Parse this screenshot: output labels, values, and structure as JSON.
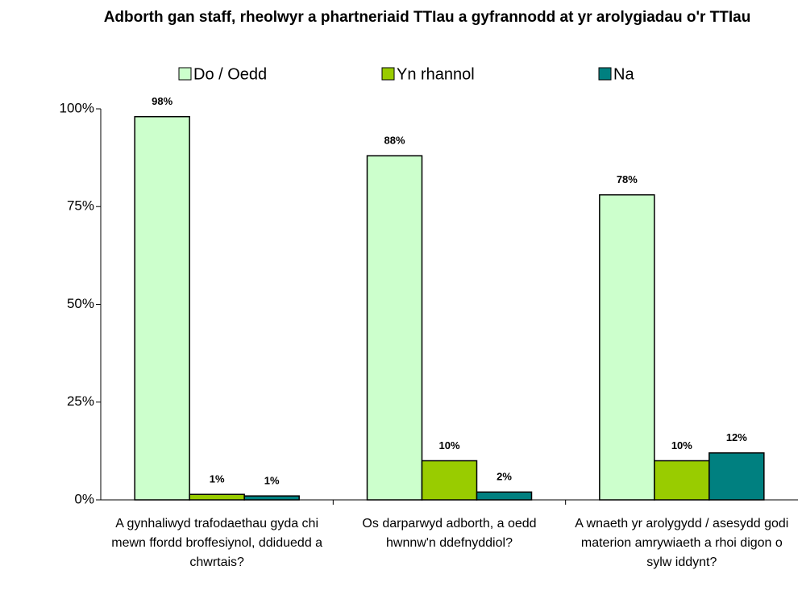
{
  "chart_data": {
    "type": "bar",
    "title": "Adborth gan staff, rheolwyr a phartneriaid TTIau a gyfrannodd at yr arolygiadau o'r TTIau",
    "categories": [
      "A gynhaliwyd trafodaethau gyda chi mewn ffordd broffesiynol, ddiduedd a chwrtais?",
      "Os darparwyd adborth, a oedd hwnnw'n ddefnyddiol?",
      "A wnaeth yr arolygydd / asesydd godi materion amrywiaeth a rhoi digon o sylw iddynt?"
    ],
    "series": [
      {
        "name": "Do / Oedd",
        "color": "#ccffcc",
        "values": [
          98,
          88,
          78
        ],
        "value_labels": [
          "98%",
          "88%",
          "78%"
        ]
      },
      {
        "name": "Yn rhannol",
        "color": "#99cc00",
        "values": [
          1.4,
          10,
          10
        ],
        "value_labels": [
          "1%",
          "10%",
          "10%"
        ]
      },
      {
        "name": "Na",
        "color": "#008080",
        "values": [
          1,
          2,
          12
        ],
        "value_labels": [
          "1%",
          "2%",
          "12%"
        ]
      }
    ],
    "ylim": [
      0,
      100
    ],
    "yticks": [
      {
        "value": 0,
        "label": "0%"
      },
      {
        "value": 25,
        "label": "25%"
      },
      {
        "value": 50,
        "label": "50%"
      },
      {
        "value": 75,
        "label": "75%"
      },
      {
        "value": 100,
        "label": "100%"
      }
    ],
    "legend": "top"
  }
}
